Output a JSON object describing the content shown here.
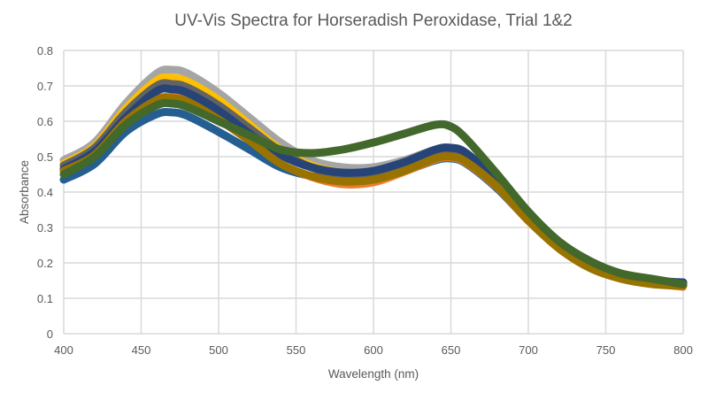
{
  "chart_data": {
    "type": "line",
    "title": "UV-Vis Spectra for Horseradish Peroxidase, Trial 1&2",
    "xlabel": "Wavelength (nm)",
    "ylabel": "Absorbance",
    "xlim": [
      400,
      800
    ],
    "ylim": [
      0,
      0.8
    ],
    "xticks": [
      400,
      450,
      500,
      550,
      600,
      650,
      700,
      750,
      800
    ],
    "yticks": [
      "0",
      "0.1",
      "0.2",
      "0.3",
      "0.4",
      "0.5",
      "0.6",
      "0.7",
      "0.8"
    ],
    "grid": true,
    "legend": "none",
    "x": [
      400,
      420,
      440,
      460,
      470,
      480,
      500,
      520,
      540,
      560,
      580,
      600,
      620,
      640,
      650,
      660,
      680,
      700,
      720,
      740,
      760,
      780,
      800
    ],
    "series": [
      {
        "color": "#255E91",
        "values": [
          0.435,
          0.48,
          0.57,
          0.62,
          0.625,
          0.615,
          0.57,
          0.52,
          0.47,
          0.445,
          0.435,
          0.44,
          0.46,
          0.49,
          0.495,
          0.48,
          0.41,
          0.32,
          0.245,
          0.195,
          0.165,
          0.15,
          0.14
        ]
      },
      {
        "color": "#ED7D31",
        "values": [
          0.47,
          0.515,
          0.61,
          0.665,
          0.67,
          0.66,
          0.61,
          0.545,
          0.48,
          0.44,
          0.42,
          0.425,
          0.455,
          0.49,
          0.495,
          0.48,
          0.41,
          0.315,
          0.24,
          0.185,
          0.155,
          0.14,
          0.13
        ]
      },
      {
        "color": "#A5A5A5",
        "values": [
          0.49,
          0.54,
          0.65,
          0.735,
          0.745,
          0.735,
          0.68,
          0.61,
          0.54,
          0.49,
          0.47,
          0.47,
          0.49,
          0.52,
          0.525,
          0.51,
          0.43,
          0.33,
          0.25,
          0.195,
          0.165,
          0.15,
          0.14
        ]
      },
      {
        "color": "#FFC000",
        "values": [
          0.48,
          0.53,
          0.635,
          0.715,
          0.722,
          0.712,
          0.66,
          0.59,
          0.52,
          0.475,
          0.455,
          0.455,
          0.475,
          0.505,
          0.51,
          0.495,
          0.42,
          0.325,
          0.245,
          0.19,
          0.16,
          0.145,
          0.135
        ]
      },
      {
        "color": "#636363",
        "values": [
          0.475,
          0.525,
          0.625,
          0.7,
          0.705,
          0.695,
          0.645,
          0.58,
          0.515,
          0.47,
          0.45,
          0.455,
          0.48,
          0.515,
          0.52,
          0.505,
          0.425,
          0.325,
          0.245,
          0.19,
          0.16,
          0.145,
          0.14
        ]
      },
      {
        "color": "#264478",
        "values": [
          0.465,
          0.515,
          0.61,
          0.685,
          0.69,
          0.68,
          0.63,
          0.565,
          0.505,
          0.47,
          0.455,
          0.46,
          0.485,
          0.52,
          0.525,
          0.51,
          0.43,
          0.33,
          0.25,
          0.195,
          0.165,
          0.15,
          0.145
        ]
      },
      {
        "color": "#997300",
        "values": [
          0.46,
          0.505,
          0.6,
          0.66,
          0.665,
          0.655,
          0.605,
          0.545,
          0.48,
          0.445,
          0.43,
          0.435,
          0.46,
          0.495,
          0.5,
          0.485,
          0.415,
          0.32,
          0.24,
          0.185,
          0.155,
          0.14,
          0.135
        ]
      },
      {
        "color": "#43682B",
        "values": [
          0.45,
          0.5,
          0.59,
          0.645,
          0.65,
          0.64,
          0.6,
          0.56,
          0.52,
          0.51,
          0.52,
          0.54,
          0.565,
          0.59,
          0.585,
          0.55,
          0.45,
          0.345,
          0.26,
          0.205,
          0.17,
          0.155,
          0.14
        ]
      }
    ]
  }
}
